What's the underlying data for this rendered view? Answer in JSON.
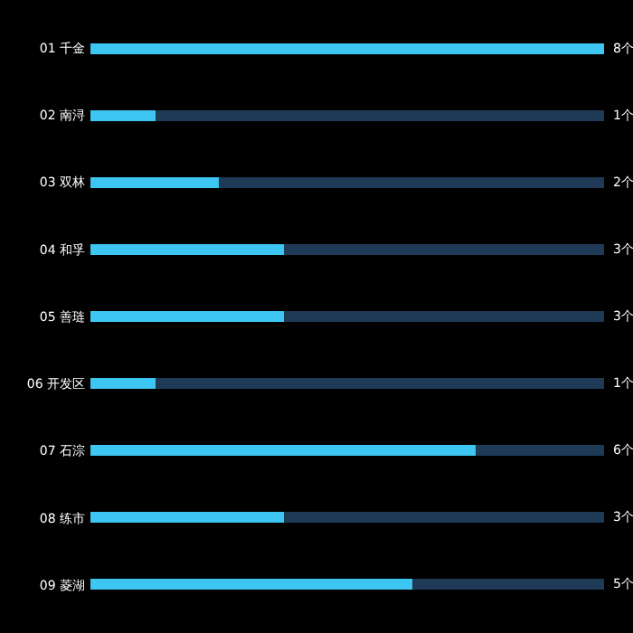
{
  "chart_data": {
    "type": "bar",
    "orientation": "horizontal",
    "categories": [
      "01 千金",
      "02 南浔",
      "03 双林",
      "04 和孚",
      "05 善琏",
      "06 开发区",
      "07 石淙",
      "08 练市",
      "09 菱湖"
    ],
    "series": [
      {
        "color": "#3ec6f2",
        "values": [
          8,
          1,
          2,
          3,
          3,
          1,
          6,
          3,
          5
        ],
        "value_labels": [
          "8个",
          "1个",
          "2个",
          "3个",
          "3个",
          "1个",
          "6个",
          "3个",
          "5个"
        ]
      },
      {
        "color": "#1f3a57",
        "values": [
          0,
          7,
          6,
          5,
          5,
          7,
          2,
          5,
          3
        ]
      }
    ],
    "stacked": true,
    "xlim": [
      0,
      8
    ],
    "tick_labels": "y",
    "grid": false
  }
}
